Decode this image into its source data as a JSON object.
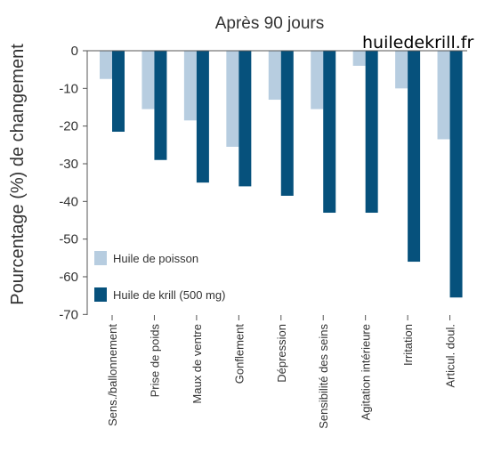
{
  "watermark": "huiledekrill.fr",
  "colors": {
    "fish": "#b7cde0",
    "krill": "#06517c",
    "axis": "#555555"
  },
  "chart_data": {
    "type": "bar",
    "title": "Après 90 jours",
    "ylabel": "Pourcentage (%) de changement",
    "xlabel": "",
    "ylim": [
      -70,
      0
    ],
    "yticks": [
      0,
      -10,
      -20,
      -30,
      -40,
      -50,
      -60,
      -70
    ],
    "grid": false,
    "legend_position": "left",
    "categories": [
      "Sens./ballonnement",
      "Prise de poids",
      "Maux de ventre",
      "Gonflement",
      "Dépression",
      "Sensibilité des seins",
      "Agitation intérieure",
      "Irritation",
      "Articul. doul."
    ],
    "series": [
      {
        "name": "Huile de poisson",
        "color": "#b7cde0",
        "values": [
          -7.5,
          -15.5,
          -18.5,
          -25.5,
          -13,
          -15.5,
          -4,
          -10,
          -23.5
        ]
      },
      {
        "name": "Huile de krill (500 mg)",
        "color": "#06517c",
        "values": [
          -21.5,
          -29,
          -35,
          -36,
          -38.5,
          -43,
          -43,
          -56,
          -65.5
        ]
      }
    ]
  }
}
